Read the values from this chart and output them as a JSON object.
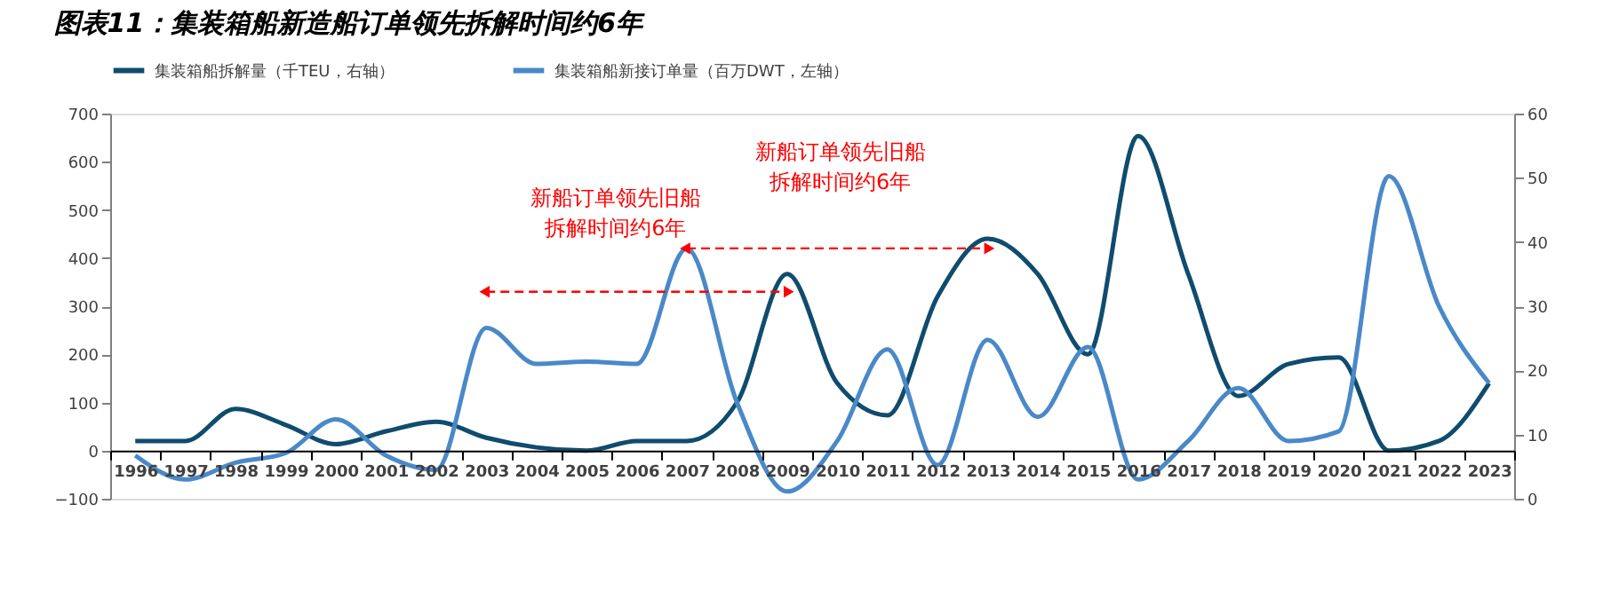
{
  "chart_data": {
    "type": "line",
    "title": "图表11：集装箱船新造船订单领先拆解时间约6年",
    "categories": [
      "1996",
      "1997",
      "1998",
      "1999",
      "2000",
      "2001",
      "2002",
      "2003",
      "2004",
      "2005",
      "2006",
      "2007",
      "2008",
      "2009",
      "2010",
      "2011",
      "2012",
      "2013",
      "2014",
      "2015",
      "2016",
      "2017",
      "2018",
      "2019",
      "2020",
      "2021",
      "2022",
      "2023"
    ],
    "series": [
      {
        "name": "集装箱船拆解量（千TEU，右轴）",
        "color": "#0f4c6e",
        "axis": "y2",
        "values": [
          9,
          9,
          14,
          11.5,
          8.5,
          10.5,
          12,
          9.5,
          8,
          7.5,
          9,
          9,
          15,
          35,
          18,
          13,
          31.5,
          40.5,
          35,
          22.5,
          56.5,
          35,
          16,
          21,
          22,
          7.5,
          9,
          18
        ]
      },
      {
        "name": "集装箱船新接订单量（百万DWT，左轴）",
        "color": "#4a89c8",
        "values": [
          -10,
          -60,
          -25,
          -5,
          65,
          -10,
          -40,
          255,
          180,
          185,
          180,
          420,
          100,
          -85,
          20,
          210,
          -30,
          230,
          70,
          215,
          -60,
          20,
          130,
          20,
          40,
          570,
          300,
          140
        ]
      },
      {
        "type": "line",
        "color": "#ff0000",
        "line_style": "dashed",
        "values": [
          null,
          null,
          null,
          null,
          null,
          null,
          null,
          330,
          330,
          330,
          330,
          330,
          330,
          330,
          null,
          null,
          null,
          null,
          null,
          null,
          null,
          null,
          null,
          null,
          null,
          null,
          null,
          null
        ]
      },
      {
        "type": "line",
        "color": "#ff0000",
        "line_style": "dashed",
        "values": [
          null,
          null,
          null,
          null,
          null,
          null,
          null,
          null,
          null,
          null,
          null,
          420,
          420,
          420,
          420,
          420,
          420,
          420,
          null,
          null,
          null,
          null,
          null,
          null,
          null,
          null,
          null,
          null
        ]
      }
    ],
    "ylim": [
      -100,
      700
    ],
    "yticks": [
      -100,
      0,
      100,
      200,
      300,
      400,
      500,
      600,
      700
    ],
    "y2lim": [
      0,
      60
    ],
    "y2ticks": [
      0,
      10,
      20,
      30,
      40,
      50,
      60
    ],
    "annotations": [
      "新船订单领先旧船拆解时间约6年",
      "新船订单领先旧船拆解时间约6年"
    ],
    "legend": "top",
    "grid": false,
    "marker": "none",
    "line_style": "solid"
  }
}
